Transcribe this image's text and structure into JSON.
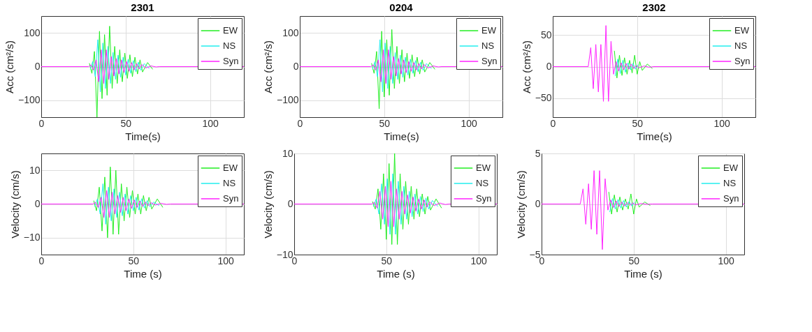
{
  "chart_data": [
    {
      "type": "line",
      "title": "2301",
      "xlabel": "Time(s)",
      "ylabel": "Acc (cm²/s)",
      "xlim": [
        0,
        120
      ],
      "xticks": [
        0,
        50,
        100
      ],
      "ylim": [
        -150,
        150
      ],
      "yticks": [
        -100,
        0,
        100
      ],
      "grid": true,
      "legend": "top right",
      "series": [
        {
          "name": "EW",
          "color": "#22ee22",
          "x": [
            28.5,
            30,
            31.5,
            33,
            34.5,
            36,
            37.5,
            39,
            40.5,
            42,
            43.5,
            45,
            46.5,
            48,
            49.5,
            51,
            52.5,
            54,
            55.5,
            57,
            58.5,
            60,
            63,
            66
          ],
          "values": [
            10,
            -20,
            45,
            -150,
            105,
            -95,
            95,
            -85,
            120,
            -65,
            60,
            -50,
            50,
            -45,
            40,
            -35,
            35,
            -30,
            28,
            -22,
            20,
            -16,
            12,
            -8
          ]
        },
        {
          "name": "NS",
          "color": "#22eeee",
          "x": [
            29,
            30.5,
            32,
            33.5,
            35,
            36.5,
            38,
            39.5,
            41,
            42.5,
            44,
            45.5,
            47,
            48.5,
            50,
            51.5,
            53,
            54.5,
            56,
            57.5,
            59,
            61,
            64
          ],
          "values": [
            -8,
            15,
            -30,
            80,
            -75,
            70,
            -65,
            60,
            -50,
            42,
            -38,
            34,
            -32,
            28,
            -25,
            22,
            -20,
            18,
            -15,
            13,
            -11,
            9,
            -6
          ]
        },
        {
          "name": "Syn",
          "color": "#ff22ff",
          "x": [
            0,
            28,
            29.5,
            31,
            32.5,
            34,
            35.5,
            37,
            38.5,
            40,
            41.5,
            43,
            44.5,
            46,
            47.5,
            49,
            50.5,
            52,
            53.5,
            55,
            56.5,
            58,
            59.5,
            62,
            65,
            68,
            70,
            120
          ],
          "values": [
            0,
            0,
            5,
            -10,
            20,
            -45,
            50,
            -50,
            50,
            -38,
            30,
            -28,
            24,
            -22,
            20,
            -18,
            15,
            -14,
            12,
            -10,
            9,
            -7,
            6,
            -4,
            2,
            -1,
            0,
            0
          ]
        }
      ]
    },
    {
      "type": "line",
      "title": "0204",
      "xlabel": "Time(s)",
      "ylabel": "Acc (cm²/s)",
      "xlim": [
        0,
        120
      ],
      "xticks": [
        0,
        50,
        100
      ],
      "ylim": [
        -150,
        150
      ],
      "yticks": [
        -100,
        0,
        100
      ],
      "grid": true,
      "legend": "top right",
      "series": [
        {
          "name": "EW",
          "color": "#22ee22",
          "x": [
            42.5,
            44,
            45.5,
            47,
            48.5,
            50,
            51.5,
            53,
            54.5,
            56,
            57.5,
            59,
            60.5,
            62,
            63.5,
            65,
            66.5,
            68,
            69.5,
            71,
            72.5,
            74,
            77,
            80
          ],
          "values": [
            10,
            -20,
            45,
            -125,
            105,
            -90,
            80,
            -85,
            110,
            -65,
            60,
            -50,
            50,
            -45,
            40,
            -35,
            35,
            -30,
            28,
            -22,
            20,
            -16,
            12,
            -8
          ]
        },
        {
          "name": "NS",
          "color": "#22eeee",
          "x": [
            43,
            44.5,
            46,
            47.5,
            49,
            50.5,
            52,
            53.5,
            55,
            56.5,
            58,
            59.5,
            61,
            62.5,
            64,
            65.5,
            67,
            68.5,
            70,
            71.5,
            73,
            75,
            78
          ],
          "values": [
            -8,
            15,
            -30,
            80,
            -75,
            70,
            -65,
            60,
            -50,
            42,
            -38,
            34,
            -32,
            28,
            -25,
            22,
            -20,
            18,
            -15,
            13,
            -11,
            9,
            -6
          ]
        },
        {
          "name": "Syn",
          "color": "#ff22ff",
          "x": [
            0,
            42,
            43.5,
            45,
            46.5,
            48,
            49.5,
            51,
            52.5,
            54,
            55.5,
            57,
            58.5,
            60,
            61.5,
            63,
            64.5,
            66,
            67.5,
            69,
            70.5,
            72,
            73.5,
            76,
            79,
            82,
            84,
            120
          ],
          "values": [
            0,
            0,
            5,
            -10,
            20,
            -45,
            50,
            -50,
            50,
            -38,
            30,
            -28,
            24,
            -22,
            20,
            -18,
            15,
            -14,
            12,
            -10,
            9,
            -7,
            6,
            -4,
            2,
            -1,
            0,
            0
          ]
        }
      ]
    },
    {
      "type": "line",
      "title": "2302",
      "xlabel": "Time(s)",
      "ylabel": "Acc (cm²/s)",
      "xlim": [
        0,
        120
      ],
      "xticks": [
        0,
        50,
        100
      ],
      "ylim": [
        -80,
        80
      ],
      "yticks": [
        -50,
        0,
        50
      ],
      "grid": true,
      "legend": "top right",
      "series": [
        {
          "name": "EW",
          "color": "#22ee22",
          "x": [
            36.5,
            38,
            39.5,
            41,
            42.5,
            44,
            45.5,
            47,
            48.5,
            50,
            51.5,
            53,
            56,
            59
          ],
          "values": [
            25,
            -18,
            18,
            -14,
            14,
            -12,
            10,
            -10,
            18,
            -12,
            8,
            -6,
            4,
            -3
          ]
        },
        {
          "name": "NS",
          "color": "#22eeee",
          "x": [
            37,
            38.5,
            40,
            41.5,
            43,
            44.5,
            46,
            47.5,
            49,
            50.5
          ],
          "values": [
            -15,
            12,
            -11,
            10,
            -9,
            6,
            -5,
            5,
            -4,
            3
          ]
        },
        {
          "name": "Syn",
          "color": "#ff22ff",
          "x": [
            0,
            21,
            22.5,
            24,
            25.5,
            27,
            28.5,
            30,
            31.5,
            33,
            34.5,
            36,
            37.5,
            39,
            40.5,
            42,
            43.5,
            45,
            46.5,
            48,
            49.5,
            51,
            54,
            57,
            60,
            120
          ],
          "values": [
            0,
            0,
            30,
            -35,
            35,
            -40,
            35,
            -55,
            65,
            -55,
            40,
            -12,
            8,
            -7,
            6,
            -5,
            5,
            -4,
            4,
            -3,
            2,
            -2,
            1,
            -1,
            0,
            0
          ]
        }
      ]
    },
    {
      "type": "line",
      "xlabel": "Time (s)",
      "ylabel": "Velocity (cm/s)",
      "xlim": [
        0,
        110
      ],
      "xticks": [
        0,
        50,
        100
      ],
      "ylim": [
        -15,
        15
      ],
      "yticks": [
        -10,
        0,
        10
      ],
      "grid": true,
      "legend": "top right",
      "series": [
        {
          "name": "EW",
          "color": "#22ee22",
          "x": [
            28.5,
            30,
            31.5,
            33,
            34.5,
            36,
            37.5,
            39,
            40.5,
            42,
            43.5,
            45,
            46.5,
            48,
            49.5,
            51,
            52.5,
            54,
            55.5,
            57,
            58.5,
            60,
            63,
            66
          ],
          "values": [
            1,
            -2,
            5,
            -8,
            8,
            -10,
            11,
            -9,
            10,
            -9,
            6,
            -5,
            5,
            -4,
            4,
            -3,
            3,
            -3,
            2.5,
            -2,
            2,
            -1.5,
            1.5,
            -1
          ]
        },
        {
          "name": "NS",
          "color": "#22eeee",
          "x": [
            29,
            30.5,
            32,
            33.5,
            35,
            36.5,
            38,
            39.5,
            41,
            42.5,
            44,
            45.5,
            47,
            48.5,
            50,
            51.5,
            53,
            54.5,
            56,
            57.5,
            59,
            61,
            64
          ],
          "values": [
            -0.8,
            1.5,
            -3,
            6,
            -6,
            5,
            -5,
            4.5,
            -4,
            3.5,
            -3.5,
            3,
            -3,
            2.5,
            -2,
            2,
            -1.8,
            1.6,
            -1.2,
            1,
            -0.8,
            0.6,
            -0.5
          ]
        },
        {
          "name": "Syn",
          "color": "#ff22ff",
          "x": [
            0,
            28,
            29.5,
            31,
            32.5,
            34,
            35.5,
            37,
            38.5,
            40,
            41.5,
            43,
            44.5,
            46,
            47.5,
            49,
            50.5,
            52,
            53.5,
            55,
            56.5,
            58,
            59.5,
            62,
            65,
            68,
            70,
            110
          ],
          "values": [
            0,
            0,
            0.5,
            -1,
            2,
            -4,
            4,
            -4,
            3.5,
            -3,
            2.5,
            -2.5,
            2,
            -2,
            1.5,
            -1.3,
            1.2,
            -1,
            0.9,
            -0.7,
            0.6,
            -0.5,
            0.4,
            -0.3,
            0.2,
            -0.1,
            0,
            0
          ]
        }
      ]
    },
    {
      "type": "line",
      "xlabel": "Time (s)",
      "ylabel": "Velocity (cm/s)",
      "xlim": [
        0,
        110
      ],
      "xticks": [
        0,
        50,
        100
      ],
      "ylim": [
        -10,
        10
      ],
      "yticks": [
        -10,
        0,
        10
      ],
      "grid": true,
      "legend": "top right",
      "series": [
        {
          "name": "EW",
          "color": "#22ee22",
          "x": [
            42.5,
            44,
            45.5,
            47,
            48.5,
            50,
            51.5,
            53,
            54.5,
            56,
            57.5,
            59,
            60.5,
            62,
            63.5,
            65,
            66.5,
            68,
            69.5,
            71,
            72.5,
            74,
            77,
            80
          ],
          "values": [
            0.5,
            -1,
            3,
            -5,
            6,
            -7,
            8,
            -8,
            10,
            -8,
            6,
            -5,
            4.5,
            -4,
            3.5,
            -3,
            3,
            -2.5,
            2,
            -2,
            1.5,
            -1.2,
            1,
            -0.8
          ]
        },
        {
          "name": "NS",
          "color": "#22eeee",
          "x": [
            43,
            44.5,
            46,
            47.5,
            49,
            50.5,
            52,
            53.5,
            55,
            56.5,
            58,
            59.5,
            61,
            62.5,
            64,
            65.5,
            67,
            68.5,
            70,
            71.5,
            73,
            75,
            78
          ],
          "values": [
            -0.5,
            1,
            -2,
            4,
            -4,
            5,
            -6,
            6,
            -6,
            4.5,
            -4,
            3.5,
            -3,
            2.5,
            -2.5,
            2,
            -2,
            1.5,
            -1.5,
            1.2,
            -1,
            0.7,
            -0.5
          ]
        },
        {
          "name": "Syn",
          "color": "#ff22ff",
          "x": [
            0,
            42,
            43.5,
            45,
            46.5,
            48,
            49.5,
            51,
            52.5,
            54,
            55.5,
            57,
            58.5,
            60,
            61.5,
            63,
            64.5,
            66,
            67.5,
            69,
            70.5,
            72,
            73.5,
            76,
            79,
            82,
            84,
            110
          ],
          "values": [
            0,
            0,
            0.3,
            -0.8,
            2.5,
            -3,
            3.5,
            -4.5,
            4.5,
            -4.5,
            3,
            -3,
            2.5,
            -2,
            1.8,
            -1.8,
            1.4,
            -1.4,
            1,
            -1,
            0.8,
            -0.6,
            0.4,
            -0.3,
            0.2,
            -0.1,
            0,
            0
          ]
        }
      ]
    },
    {
      "type": "line",
      "xlabel": "Time (s)",
      "ylabel": "Velocity (cm/s)",
      "xlim": [
        0,
        110
      ],
      "xticks": [
        0,
        50,
        100
      ],
      "ylim": [
        -5,
        5
      ],
      "yticks": [
        -5,
        0,
        5
      ],
      "grid": true,
      "legend": "top right",
      "series": [
        {
          "name": "EW",
          "color": "#22ee22",
          "x": [
            36.5,
            38,
            39.5,
            41,
            42.5,
            44,
            45.5,
            47,
            48.5,
            50,
            51.5,
            53,
            56,
            59
          ],
          "values": [
            1.2,
            -1,
            0.9,
            -0.8,
            0.7,
            -0.6,
            0.5,
            -0.5,
            1,
            -1,
            0.5,
            -0.3,
            0.2,
            -0.15
          ]
        },
        {
          "name": "NS",
          "color": "#22eeee",
          "x": [
            37,
            38.5,
            40,
            41.5,
            43,
            44.5,
            46,
            47.5,
            49,
            50.5
          ],
          "values": [
            -0.8,
            0.55,
            -0.5,
            0.45,
            -0.4,
            0.35,
            -0.3,
            0.25,
            -0.2,
            0.18
          ]
        },
        {
          "name": "Syn",
          "color": "#ff22ff",
          "x": [
            0,
            21,
            22.5,
            24,
            25.5,
            27,
            28.5,
            30,
            31.5,
            33,
            34.5,
            36,
            37.5,
            39,
            40.5,
            42,
            43.5,
            45,
            46.5,
            48,
            49.5,
            51,
            54,
            57,
            60,
            110
          ],
          "values": [
            0,
            0,
            1.5,
            -2,
            2,
            -2.5,
            3.3,
            -3,
            3.3,
            -4.5,
            2.5,
            -0.6,
            0.4,
            -0.35,
            0.3,
            -0.25,
            0.2,
            -0.2,
            0.15,
            -0.12,
            0.1,
            -0.08,
            0.05,
            -0.03,
            0,
            0
          ]
        }
      ]
    }
  ]
}
